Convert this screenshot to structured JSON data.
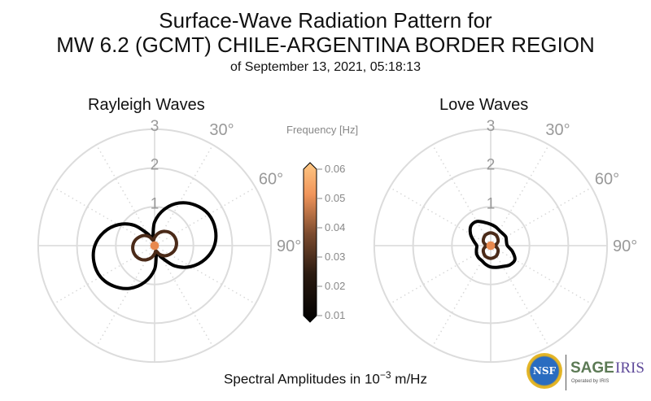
{
  "chart_data": [
    {
      "type": "polar-line",
      "title": "Rayleigh Waves",
      "rlim": [
        0,
        3
      ],
      "r_ticks": [
        "1",
        "2",
        "3"
      ],
      "theta_tick_labels": [
        "30°",
        "60°",
        "90°"
      ],
      "theta_direction": "clockwise from north",
      "azimuth_step_deg": 15,
      "series": [
        {
          "name": "0.01 Hz",
          "frequency": 0.01,
          "color": "#000000",
          "r": [
            0.61,
            0.97,
            1.27,
            1.48,
            1.61,
            1.62,
            1.54,
            1.35,
            1.08,
            0.74,
            0.35,
            0.21,
            0.61,
            0.97,
            1.27,
            1.48,
            1.61,
            1.62,
            1.54,
            1.35,
            1.08,
            0.74,
            0.35,
            0.21
          ]
        },
        {
          "name": "0.02 Hz",
          "frequency": 0.02,
          "color": "#4a2a18",
          "r": [
            0.21,
            0.32,
            0.42,
            0.5,
            0.55,
            0.57,
            0.56,
            0.52,
            0.45,
            0.37,
            0.26,
            0.14,
            0.21,
            0.32,
            0.42,
            0.5,
            0.55,
            0.57,
            0.56,
            0.52,
            0.45,
            0.37,
            0.26,
            0.14
          ]
        },
        {
          "name": "0.05 Hz",
          "frequency": 0.05,
          "color": "#e8894f",
          "r": [
            0.07,
            0.07,
            0.07,
            0.07,
            0.07,
            0.07,
            0.07,
            0.07,
            0.07,
            0.07,
            0.07,
            0.07,
            0.07,
            0.07,
            0.07,
            0.07,
            0.07,
            0.07,
            0.07,
            0.07,
            0.07,
            0.07,
            0.07,
            0.07
          ]
        }
      ]
    },
    {
      "type": "polar-line",
      "title": "Love Waves",
      "rlim": [
        0,
        3
      ],
      "r_ticks": [
        "1",
        "2",
        "3"
      ],
      "theta_tick_labels": [
        "30°",
        "60°",
        "90°"
      ],
      "theta_direction": "clockwise from north",
      "azimuth_step_deg": 15,
      "series": [
        {
          "name": "0.01 Hz",
          "frequency": 0.01,
          "color": "#000000",
          "r": [
            0.55,
            0.5,
            0.45,
            0.44,
            0.45,
            0.42,
            0.43,
            0.58,
            0.72,
            0.7,
            0.62,
            0.58,
            0.55,
            0.5,
            0.45,
            0.44,
            0.42,
            0.38,
            0.36,
            0.45,
            0.6,
            0.72,
            0.72,
            0.62
          ]
        },
        {
          "name": "0.02 Hz",
          "frequency": 0.02,
          "color": "#4a2a18",
          "r": [
            0.33,
            0.32,
            0.3,
            0.26,
            0.22,
            0.16,
            0.1,
            0.16,
            0.22,
            0.26,
            0.3,
            0.32,
            0.33,
            0.32,
            0.3,
            0.26,
            0.22,
            0.16,
            0.1,
            0.16,
            0.22,
            0.26,
            0.3,
            0.32
          ]
        },
        {
          "name": "0.05 Hz",
          "frequency": 0.05,
          "color": "#e8894f",
          "r": [
            0.07,
            0.07,
            0.07,
            0.07,
            0.07,
            0.07,
            0.07,
            0.07,
            0.07,
            0.07,
            0.07,
            0.07,
            0.07,
            0.07,
            0.07,
            0.07,
            0.07,
            0.07,
            0.07,
            0.07,
            0.07,
            0.07,
            0.07,
            0.07
          ]
        }
      ]
    }
  ],
  "title": {
    "line1": "Surface-Wave Radiation Pattern for",
    "line2": "MW 6.2 (GCMT) CHILE-ARGENTINA BORDER REGION",
    "line3": "of September 13, 2021, 05:18:13"
  },
  "colorbar": {
    "label": "Frequency [Hz]",
    "ticks": [
      "0.06",
      "0.05",
      "0.04",
      "0.03",
      "0.02",
      "0.01"
    ],
    "range": [
      0.01,
      0.06
    ]
  },
  "xlabel": {
    "prefix": "Spectral Amplitudes in 10",
    "exp": "−3",
    "suffix": " m/Hz"
  },
  "logo": {
    "nsf": "NSF",
    "sage": "SAGE",
    "iris": "IRIS",
    "operated": "Operated by IRIS"
  }
}
